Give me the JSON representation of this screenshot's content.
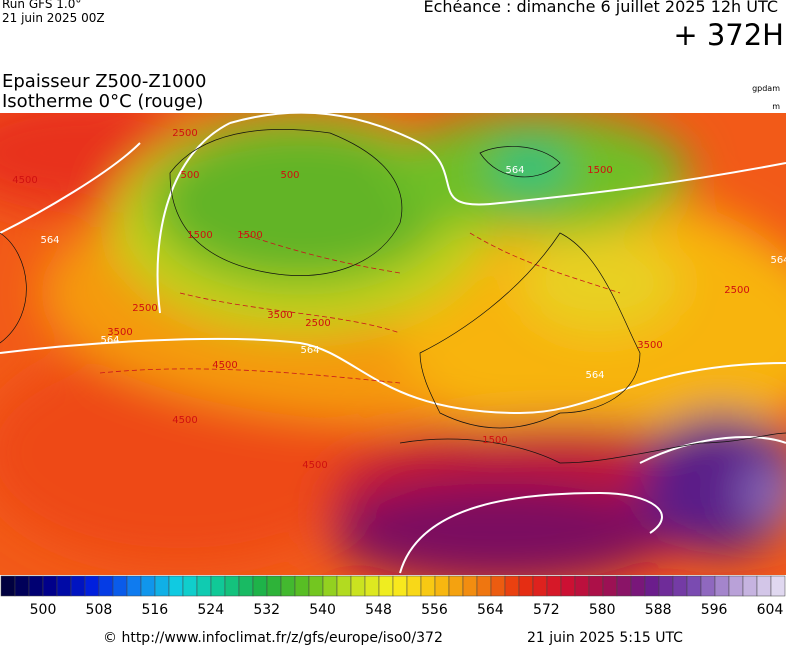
{
  "header": {
    "run": "Run GFS 1.0°",
    "run_date": "21 juin 2025 00Z",
    "valid": "Echéance : dimanche 6 juillet 2025 12h UTC",
    "lead": "+ 372H",
    "title_line1": "Epaisseur Z500-Z1000",
    "title_line2": "Isotherme 0°C (rouge)",
    "unit_thickness": "gpdam",
    "unit_height": "m"
  },
  "map": {
    "contour_labels": [
      "564",
      "564",
      "564",
      "564",
      "564",
      "564",
      "4500",
      "4500",
      "4500",
      "4500",
      "3500",
      "3500",
      "3500",
      "2500",
      "2500",
      "2500",
      "2500",
      "1500",
      "1500",
      "1500",
      "1500",
      "500",
      "500"
    ]
  },
  "colorbar": {
    "ticks": [
      500,
      508,
      516,
      524,
      532,
      540,
      548,
      556,
      564,
      572,
      580,
      588,
      596,
      604
    ]
  },
  "footer": {
    "url": "© http://www.infoclimat.fr/z/gfs/europe/iso0/372",
    "generated": "21 juin 2025  5:15 UTC"
  }
}
